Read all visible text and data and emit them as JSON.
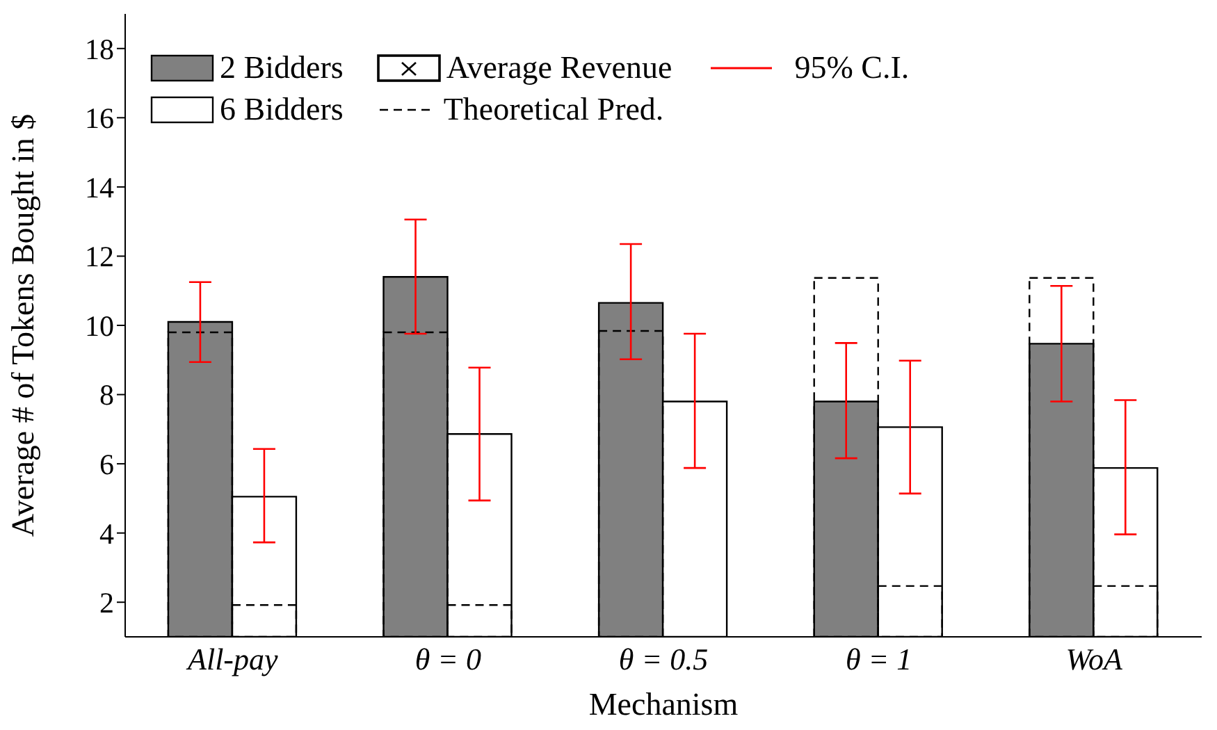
{
  "chart_data": {
    "type": "bar",
    "xlabel": "Mechanism",
    "ylabel": "Average # of Tokens Bought in $",
    "categories": [
      "All-pay",
      "θ = 0",
      "θ = 0.5",
      "θ = 1",
      "WoA"
    ],
    "series": [
      {
        "name": "2 Bidders",
        "color": "#808080",
        "values": [
          10.1,
          11.4,
          10.65,
          7.8,
          9.47
        ],
        "errors": [
          [
            8.94,
            11.25
          ],
          [
            9.76,
            13.06
          ],
          [
            9.02,
            12.35
          ],
          [
            6.16,
            9.49
          ],
          [
            7.8,
            11.14
          ]
        ]
      },
      {
        "name": "6 Bidders",
        "color": "#ffffff",
        "values": [
          5.05,
          6.86,
          7.8,
          7.06,
          5.88
        ],
        "errors": [
          [
            3.73,
            6.43
          ],
          [
            4.94,
            8.78
          ],
          [
            5.88,
            9.76
          ],
          [
            5.14,
            8.98
          ],
          [
            3.96,
            7.84
          ]
        ]
      },
      {
        "name": "Average Revenue",
        "type": "scatter",
        "marker": "cross",
        "color": "#000000",
        "values": [
          null,
          null,
          null,
          null,
          null
        ]
      },
      {
        "name": "Theoretical Pred.",
        "type": "bar",
        "line_style": "dashed",
        "color": "#000000",
        "values": [
          9.8,
          9.8,
          9.84,
          11.37,
          11.37
        ]
      },
      {
        "type": "bar",
        "line_style": "dashed",
        "color": "#000000",
        "values": [
          1.92,
          1.92,
          null,
          2.47,
          2.47
        ]
      },
      {
        "name": "95% C.I.",
        "type": "line",
        "color": "#ff0000",
        "values": [
          null,
          null,
          null,
          null,
          null
        ]
      }
    ],
    "ylim": [
      1,
      19
    ],
    "yticks": [
      2,
      4,
      6,
      8,
      10,
      12,
      14,
      16,
      18
    ],
    "legend": "top left"
  }
}
